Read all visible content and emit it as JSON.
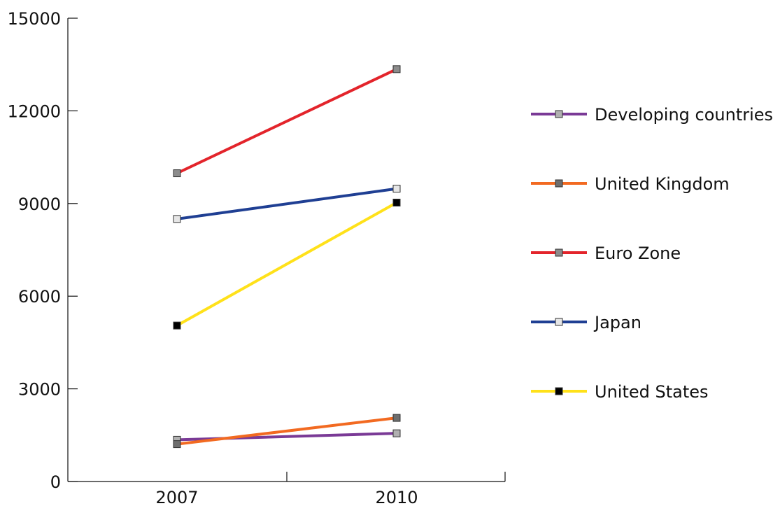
{
  "chart_data": {
    "type": "line",
    "title": "",
    "xlabel": "",
    "ylabel": "",
    "categories": [
      "2007",
      "2010"
    ],
    "ylim": [
      0,
      15000
    ],
    "yticks": [
      "0",
      "3000",
      "6000",
      "9000",
      "12000",
      "15000"
    ],
    "grid": false,
    "legend_position": "right",
    "series": [
      {
        "name": "Developing countries",
        "values": [
          1350,
          1560
        ],
        "color": "#7a3a96",
        "marker_color": "#b0b0b0"
      },
      {
        "name": "United Kingdom",
        "values": [
          1210,
          2060
        ],
        "color": "#f26a21",
        "marker_color": "#6e6e6e"
      },
      {
        "name": "Euro Zone",
        "values": [
          9980,
          13350
        ],
        "color": "#e3242b",
        "marker_color": "#8c8c8c"
      },
      {
        "name": "Japan",
        "values": [
          8500,
          9480
        ],
        "color": "#1f3f93",
        "marker_color": "#e6e6e6"
      },
      {
        "name": "United States",
        "values": [
          5050,
          9030
        ],
        "color": "#ffe11a",
        "marker_color": "#000000"
      }
    ]
  }
}
